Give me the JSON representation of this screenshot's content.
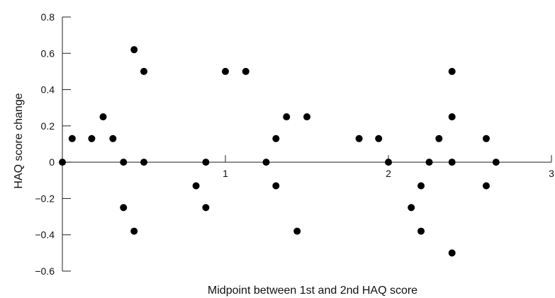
{
  "chart_data": {
    "type": "scatter",
    "title": "",
    "xlabel": "Midpoint between 1st and 2nd HAQ score",
    "ylabel": "HAQ score change",
    "xlim": [
      0,
      3
    ],
    "ylim": [
      -0.6,
      0.8
    ],
    "x_ticks": [
      1,
      2,
      3
    ],
    "x_tick_labels": [
      "1",
      "2",
      "3"
    ],
    "y_ticks": [
      0.8,
      0.6,
      0.4,
      0.2,
      0,
      -0.2,
      -0.4,
      -0.6
    ],
    "y_tick_labels": [
      "0.8",
      "0.6",
      "0.4",
      "0.2",
      "0",
      "−0.2",
      "−0.4",
      "−0.6"
    ],
    "grid": false,
    "legend": "none",
    "marker_color": "#000000",
    "points": [
      {
        "x": 0.0,
        "y": 0.0
      },
      {
        "x": 0.06,
        "y": 0.13
      },
      {
        "x": 0.18,
        "y": 0.13
      },
      {
        "x": 0.25,
        "y": 0.25
      },
      {
        "x": 0.31,
        "y": 0.13
      },
      {
        "x": 0.375,
        "y": 0.0
      },
      {
        "x": 0.375,
        "y": -0.25
      },
      {
        "x": 0.44,
        "y": 0.62
      },
      {
        "x": 0.44,
        "y": -0.38
      },
      {
        "x": 0.5,
        "y": 0.5
      },
      {
        "x": 0.5,
        "y": 0.0
      },
      {
        "x": 0.82,
        "y": -0.13
      },
      {
        "x": 0.88,
        "y": 0.0
      },
      {
        "x": 0.88,
        "y": -0.25
      },
      {
        "x": 1.0,
        "y": 0.5
      },
      {
        "x": 1.125,
        "y": 0.5
      },
      {
        "x": 1.25,
        "y": 0.0
      },
      {
        "x": 1.31,
        "y": 0.13
      },
      {
        "x": 1.31,
        "y": -0.13
      },
      {
        "x": 1.375,
        "y": 0.25
      },
      {
        "x": 1.44,
        "y": -0.38
      },
      {
        "x": 1.5,
        "y": 0.25
      },
      {
        "x": 1.82,
        "y": 0.13
      },
      {
        "x": 1.94,
        "y": 0.13
      },
      {
        "x": 2.0,
        "y": 0.0
      },
      {
        "x": 2.14,
        "y": -0.25
      },
      {
        "x": 2.2,
        "y": -0.13
      },
      {
        "x": 2.2,
        "y": -0.38
      },
      {
        "x": 2.25,
        "y": 0.0
      },
      {
        "x": 2.31,
        "y": 0.13
      },
      {
        "x": 2.39,
        "y": 0.5
      },
      {
        "x": 2.39,
        "y": 0.25
      },
      {
        "x": 2.39,
        "y": 0.0
      },
      {
        "x": 2.39,
        "y": -0.5
      },
      {
        "x": 2.6,
        "y": 0.13
      },
      {
        "x": 2.6,
        "y": -0.13
      },
      {
        "x": 2.66,
        "y": 0.0
      }
    ]
  }
}
